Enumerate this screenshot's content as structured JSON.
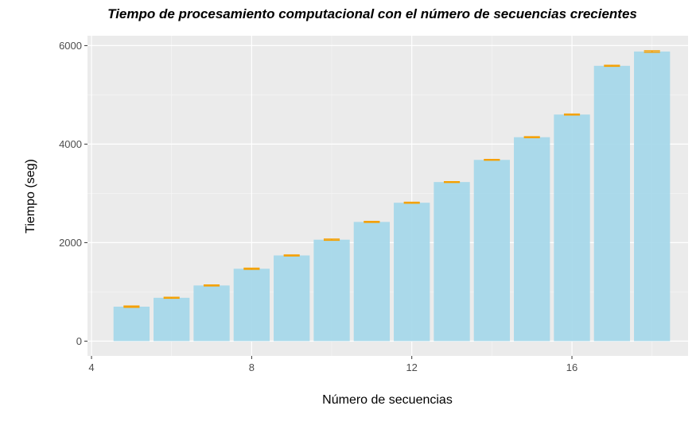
{
  "chart_data": {
    "type": "bar",
    "title": "Tiempo de procesamiento computacional con el número de secuencias crecientes",
    "xlabel": "Número de secuencias",
    "ylabel": "Tiempo (seg)",
    "x": [
      5,
      6,
      7,
      8,
      9,
      10,
      11,
      12,
      13,
      14,
      15,
      16,
      17,
      18
    ],
    "values": [
      700,
      880,
      1130,
      1470,
      1740,
      2060,
      2420,
      2810,
      3230,
      3680,
      4140,
      4600,
      5590,
      5880
    ],
    "error_bars": [
      12,
      10,
      10,
      12,
      10,
      12,
      10,
      10,
      8,
      8,
      10,
      10,
      10,
      15
    ],
    "xlim": [
      3.9,
      18.9
    ],
    "ylim": [
      -300,
      6200
    ],
    "xticks": [
      4,
      8,
      12,
      16
    ],
    "yticks": [
      0,
      2000,
      4000,
      6000
    ],
    "xtick_labels": [
      "4",
      "8",
      "12",
      "16"
    ],
    "ytick_labels": [
      "0",
      "2000",
      "4000",
      "6000"
    ],
    "grid": true,
    "colors": {
      "bar_fill": "#a6d8ea",
      "error_bar": "#f5a000",
      "panel_bg": "#ebebeb",
      "grid_major": "#ffffff",
      "grid_minor": "#f5f5f5"
    }
  }
}
